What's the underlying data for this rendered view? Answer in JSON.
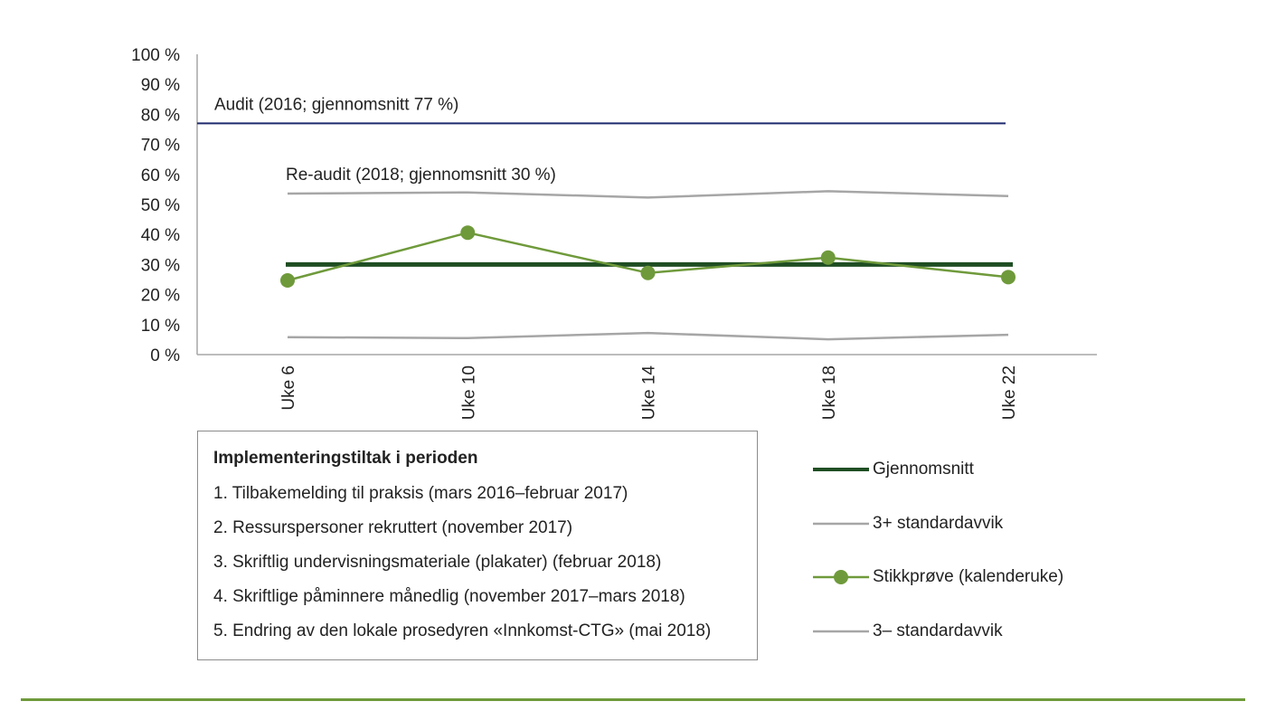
{
  "chart_data": {
    "type": "line",
    "categories": [
      "Uke 6",
      "Uke 10",
      "Uke 14",
      "Uke 18",
      "Uke 22"
    ],
    "ylim": [
      0,
      100
    ],
    "y_ticks": [
      0,
      10,
      20,
      30,
      40,
      50,
      60,
      70,
      80,
      90,
      100
    ],
    "y_tick_labels": [
      "0 %",
      "10 %",
      "20 %",
      "30 %",
      "40 %",
      "50 %",
      "60 %",
      "70 %",
      "80 %",
      "90 %",
      "100 %"
    ],
    "grid": false,
    "legend_position": "right, below chart",
    "series": [
      {
        "name": "Gjennomsnitt",
        "values": [
          30,
          30,
          30,
          30,
          30
        ],
        "color": "#1f4e23"
      },
      {
        "name": "3+ standardavvik",
        "values": [
          53.6,
          54.0,
          52.3,
          54.4,
          52.8
        ],
        "color": "#a6a6a6"
      },
      {
        "name": "Stikkprøve (kalenderuke)",
        "values": [
          24.7,
          40.6,
          27.2,
          32.3,
          25.8
        ],
        "color": "#6f9a3b",
        "markers": true
      },
      {
        "name": "3– standardavvik",
        "values": [
          5.8,
          5.5,
          7.2,
          5.1,
          6.6
        ],
        "color": "#a6a6a6"
      }
    ],
    "reference_lines": [
      {
        "label": "Audit (2016; gjennomsnitt 77 %)",
        "value": 77,
        "color": "#1f2a6e"
      }
    ],
    "annotations": [
      {
        "text": "Re-audit (2018; gjennomsnitt 30 %)"
      }
    ]
  },
  "measures": {
    "title": "Implementeringstiltak i perioden",
    "items": [
      "1. Tilbakemelding til praksis (mars 2016–februar 2017)",
      "2. Ressurspersoner rekruttert (november 2017)",
      "3. Skriftlig undervisningsmateriale (plakater) (februar 2018)",
      "4. Skriftlige påminnere månedlig (november 2017–mars 2018)",
      "5. Endring av den lokale prosedyren «Innkomst-CTG» (mai 2018)"
    ]
  },
  "colors": {
    "footer_rule": "#6f9a3b",
    "axis": "#a6a6a6"
  }
}
